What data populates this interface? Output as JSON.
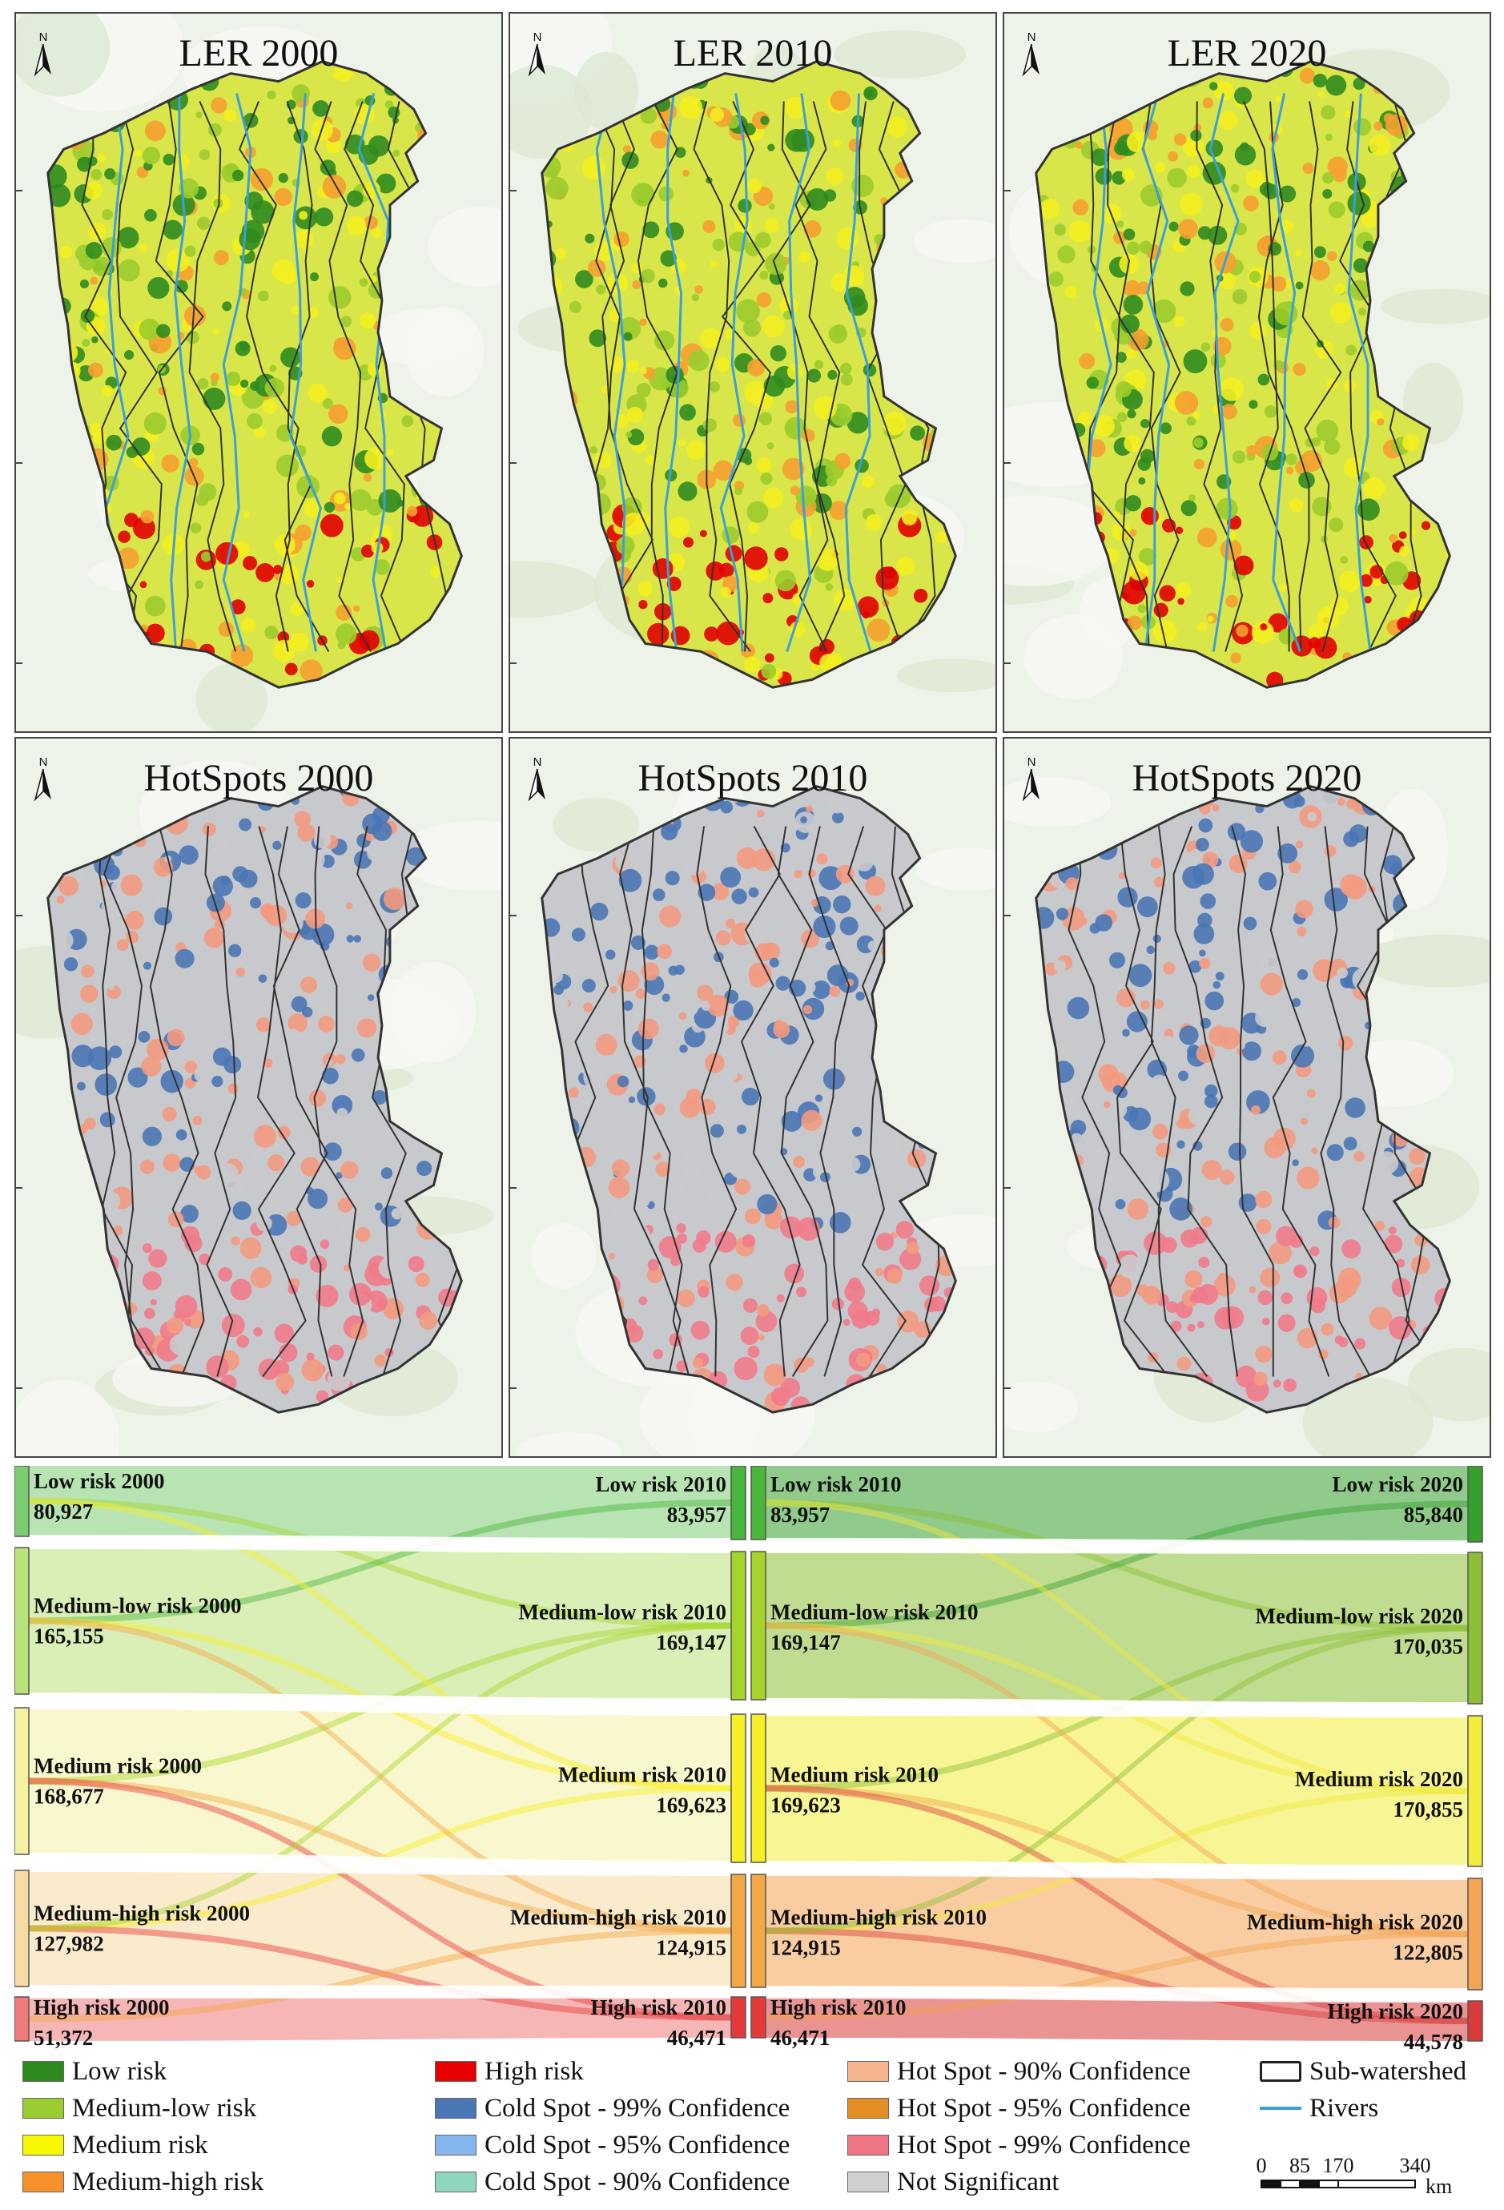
{
  "panels": {
    "ler_2000": {
      "title": "LER 2000"
    },
    "ler_2010": {
      "title": "LER 2010"
    },
    "ler_2020": {
      "title": "LER 2020"
    },
    "hot_2000": {
      "title": "HotSpots 2000"
    },
    "hot_2010": {
      "title": "HotSpots 2010"
    },
    "hot_2020": {
      "title": "HotSpots 2020"
    }
  },
  "north_label": "N",
  "sankey": {
    "left": [
      {
        "label": "Low risk 2000",
        "value": "80,927",
        "color": "#7ccd72"
      },
      {
        "label": "Medium-low risk 2000",
        "value": "165,155",
        "color": "#b9e27a"
      },
      {
        "label": "Medium risk 2000",
        "value": "168,677",
        "color": "#f4f0a4"
      },
      {
        "label": "Medium-high risk 2000",
        "value": "127,982",
        "color": "#f7dba4"
      },
      {
        "label": "High risk 2000",
        "value": "51,372",
        "color": "#ee7a7a"
      }
    ],
    "mid": [
      {
        "label": "Low risk 2010",
        "value": "83,957",
        "color": "#49b53a"
      },
      {
        "label": "Medium-low risk 2010",
        "value": "169,147",
        "color": "#a7d42b"
      },
      {
        "label": "Medium risk 2010",
        "value": "169,623",
        "color": "#f6ef27"
      },
      {
        "label": "Medium-high risk 2010",
        "value": "124,915",
        "color": "#f1a845"
      },
      {
        "label": "High risk 2010",
        "value": "46,471",
        "color": "#e6393a"
      }
    ],
    "right": [
      {
        "label": "Low risk 2020",
        "value": "85,840",
        "color": "#35a02c"
      },
      {
        "label": "Medium-low risk 2020",
        "value": "170,035",
        "color": "#8cbf34"
      },
      {
        "label": "Medium risk 2020",
        "value": "170,855",
        "color": "#f2ec3c"
      },
      {
        "label": "Medium-high risk 2020",
        "value": "122,805",
        "color": "#f4a453"
      },
      {
        "label": "High risk 2020",
        "value": "44,578",
        "color": "#d93b3b"
      }
    ]
  },
  "legend": [
    {
      "label": "Low risk",
      "color": "#2e8b1e"
    },
    {
      "label": "Medium-low risk",
      "color": "#9acd32"
    },
    {
      "label": "Medium risk",
      "color": "#f7f700"
    },
    {
      "label": "Medium-high risk",
      "color": "#f6912c"
    },
    {
      "label": "High risk",
      "color": "#e60000"
    },
    {
      "label": "Cold Spot - 99% Confidence",
      "color": "#4a76b5"
    },
    {
      "label": "Cold Spot - 95% Confidence",
      "color": "#86b6ee"
    },
    {
      "label": "Cold Spot - 90% Confidence",
      "color": "#8fd6be"
    },
    {
      "label": "Hot Spot - 90% Confidence",
      "color": "#f5b48e"
    },
    {
      "label": "Hot Spot - 95% Confidence",
      "color": "#e38e22"
    },
    {
      "label": "Hot Spot - 99% Confidence",
      "color": "#ef7584"
    },
    {
      "label": "Not Significant",
      "color": "#cfcfcf"
    },
    {
      "label": "Sub-watershed",
      "color": "#ffffff"
    },
    {
      "label": "Rivers",
      "color": "#3aa0d8"
    }
  ],
  "scale": {
    "ticks": [
      "0",
      "85",
      "170",
      "340"
    ],
    "unit": "km"
  }
}
